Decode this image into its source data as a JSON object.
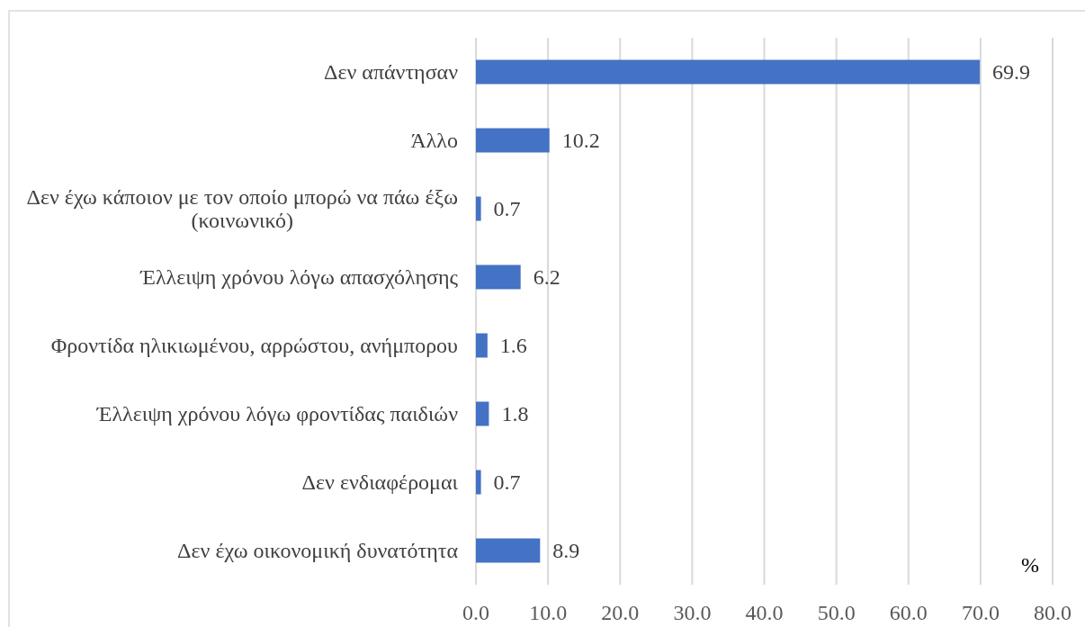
{
  "chart_data": {
    "type": "bar",
    "orientation": "horizontal",
    "categories": [
      "Δεν απάντησαν",
      "Άλλο",
      "Δεν έχω κάποιον με τον οποίο μπορώ να πάω έξω (κοινωνικό)",
      "Έλλειψη χρόνου λόγω απασχόλησης",
      "Φροντίδα ηλικιωμένου, αρρώστου, ανήμπορου",
      "Έλλειψη χρόνου λόγω φροντίδας παιδιών",
      "Δεν ενδιαφέρομαι",
      "Δεν έχω οικονομική δυνατότητα"
    ],
    "values": [
      69.9,
      10.2,
      0.7,
      6.2,
      1.6,
      1.8,
      0.7,
      8.9
    ],
    "color": "#4472c4",
    "xlim": [
      0,
      80
    ],
    "xticks": [
      {
        "value": 0,
        "label": "0.0"
      },
      {
        "value": 10,
        "label": "10.0"
      },
      {
        "value": 20,
        "label": "20.0"
      },
      {
        "value": 30,
        "label": "30.0"
      },
      {
        "value": 40,
        "label": "40.0"
      },
      {
        "value": 50,
        "label": "50.0"
      },
      {
        "value": 60,
        "label": "60.0"
      },
      {
        "value": 70,
        "label": "70.0"
      },
      {
        "value": 80,
        "label": "80.0"
      }
    ],
    "xlabel": "%",
    "grid": "x",
    "data_labels": true
  }
}
